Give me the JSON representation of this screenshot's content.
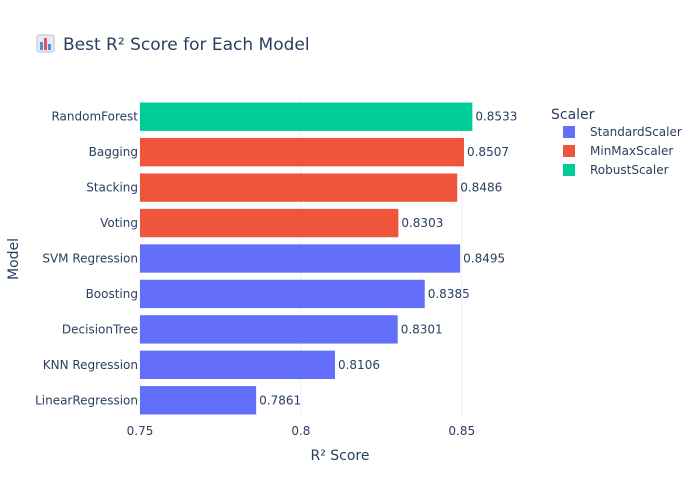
{
  "title": "Best R² Score for Each Model",
  "icon": "bar-chart-icon",
  "chart_data": {
    "type": "bar",
    "orientation": "horizontal",
    "title": "Best R² Score for Each Model",
    "xlabel": "R² Score",
    "ylabel": "Model",
    "xlim": [
      0.75,
      0.865
    ],
    "xticks": [
      0.75,
      0.8,
      0.85
    ],
    "xtick_labels": [
      "0.75",
      "0.8",
      "0.85"
    ],
    "grid": true,
    "legend_position": "top-right",
    "legend_title": "Scaler",
    "series": [
      {
        "name": "StandardScaler",
        "color": "#636efa"
      },
      {
        "name": "MinMaxScaler",
        "color": "#ef553b"
      },
      {
        "name": "RobustScaler",
        "color": "#00cc96"
      }
    ],
    "bars": [
      {
        "category": "RandomForest",
        "value": 0.8533,
        "label": "0.8533",
        "scaler": "RobustScaler"
      },
      {
        "category": "Bagging",
        "value": 0.8507,
        "label": "0.8507",
        "scaler": "MinMaxScaler"
      },
      {
        "category": "Stacking",
        "value": 0.8486,
        "label": "0.8486",
        "scaler": "MinMaxScaler"
      },
      {
        "category": "Voting",
        "value": 0.8303,
        "label": "0.8303",
        "scaler": "MinMaxScaler"
      },
      {
        "category": "SVM Regression",
        "value": 0.8495,
        "label": "0.8495",
        "scaler": "StandardScaler"
      },
      {
        "category": "Boosting",
        "value": 0.8385,
        "label": "0.8385",
        "scaler": "StandardScaler"
      },
      {
        "category": "DecisionTree",
        "value": 0.8301,
        "label": "0.8301",
        "scaler": "StandardScaler"
      },
      {
        "category": "KNN Regression",
        "value": 0.8106,
        "label": "0.8106",
        "scaler": "StandardScaler"
      },
      {
        "category": "LinearRegression",
        "value": 0.7861,
        "label": "0.7861",
        "scaler": "StandardScaler"
      }
    ]
  }
}
